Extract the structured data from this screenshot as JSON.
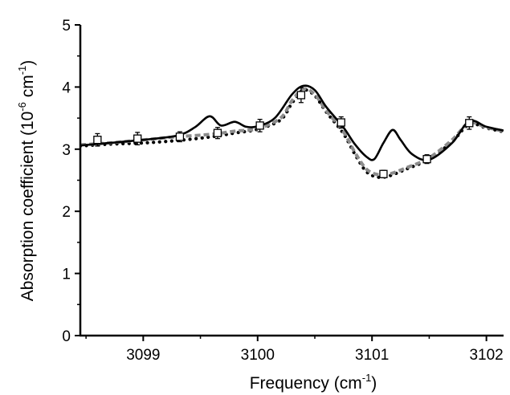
{
  "chart_data": {
    "type": "line",
    "xlabel": {
      "main": "Frequency (cm",
      "sup": "-1",
      "close": ")"
    },
    "ylabel": {
      "main": "Absorption coefficient (10",
      "sup1": "-6",
      "mid": " cm",
      "sup2": "-1",
      "close": ")"
    },
    "xlim": [
      3098.45,
      3102.15
    ],
    "ylim": [
      0,
      5
    ],
    "x_ticks": [
      3099,
      3100,
      3101,
      3102
    ],
    "y_ticks": [
      0,
      1,
      2,
      3,
      4,
      5
    ],
    "grid": false,
    "legend": "none",
    "series": [
      {
        "style": "solid",
        "color": "#000000",
        "x": [
          3098.45,
          3098.7,
          3099.0,
          3099.3,
          3099.45,
          3099.58,
          3099.68,
          3099.8,
          3099.9,
          3100.0,
          3100.15,
          3100.3,
          3100.4,
          3100.5,
          3100.6,
          3100.75,
          3100.85,
          3100.95,
          3101.02,
          3101.1,
          3101.18,
          3101.25,
          3101.35,
          3101.5,
          3101.7,
          3101.85,
          3102.0,
          3102.15
        ],
        "y": [
          3.06,
          3.1,
          3.15,
          3.22,
          3.35,
          3.53,
          3.38,
          3.44,
          3.36,
          3.37,
          3.5,
          3.88,
          4.02,
          3.95,
          3.68,
          3.35,
          3.08,
          2.88,
          2.84,
          3.1,
          3.31,
          3.15,
          2.92,
          2.83,
          3.1,
          3.45,
          3.36,
          3.3
        ]
      },
      {
        "style": "dashed",
        "color": "#8c8c8c",
        "x": [
          3098.45,
          3098.7,
          3099.0,
          3099.3,
          3099.6,
          3099.8,
          3100.0,
          3100.2,
          3100.3,
          3100.4,
          3100.5,
          3100.6,
          3100.75,
          3100.85,
          3100.95,
          3101.05,
          3101.15,
          3101.3,
          3101.5,
          3101.7,
          3101.85,
          3102.0,
          3102.15
        ],
        "y": [
          3.07,
          3.1,
          3.15,
          3.2,
          3.24,
          3.29,
          3.33,
          3.5,
          3.78,
          3.97,
          3.88,
          3.62,
          3.28,
          2.95,
          2.68,
          2.59,
          2.6,
          2.7,
          2.86,
          3.15,
          3.42,
          3.35,
          3.29
        ]
      },
      {
        "style": "dotted",
        "color": "#000000",
        "x": [
          3098.45,
          3098.7,
          3099.0,
          3099.3,
          3099.6,
          3099.8,
          3100.0,
          3100.2,
          3100.3,
          3100.4,
          3100.5,
          3100.6,
          3100.75,
          3100.85,
          3100.95,
          3101.05,
          3101.15,
          3101.3,
          3101.5,
          3101.7,
          3101.85,
          3102.0,
          3102.15
        ],
        "y": [
          3.05,
          3.08,
          3.1,
          3.14,
          3.2,
          3.26,
          3.32,
          3.47,
          3.74,
          3.95,
          3.86,
          3.6,
          3.25,
          2.92,
          2.64,
          2.55,
          2.57,
          2.68,
          2.84,
          3.12,
          3.4,
          3.34,
          3.28
        ]
      }
    ],
    "markers": {
      "symbol": "open-square",
      "x": [
        3098.6,
        3098.95,
        3099.32,
        3099.65,
        3100.02,
        3100.38,
        3100.73,
        3101.1,
        3101.48,
        3101.85
      ],
      "y": [
        3.15,
        3.17,
        3.2,
        3.26,
        3.38,
        3.87,
        3.43,
        2.6,
        2.84,
        3.42
      ],
      "err": [
        0.1,
        0.1,
        0.08,
        0.09,
        0.1,
        0.12,
        0.09,
        0.06,
        0.07,
        0.1
      ]
    }
  }
}
